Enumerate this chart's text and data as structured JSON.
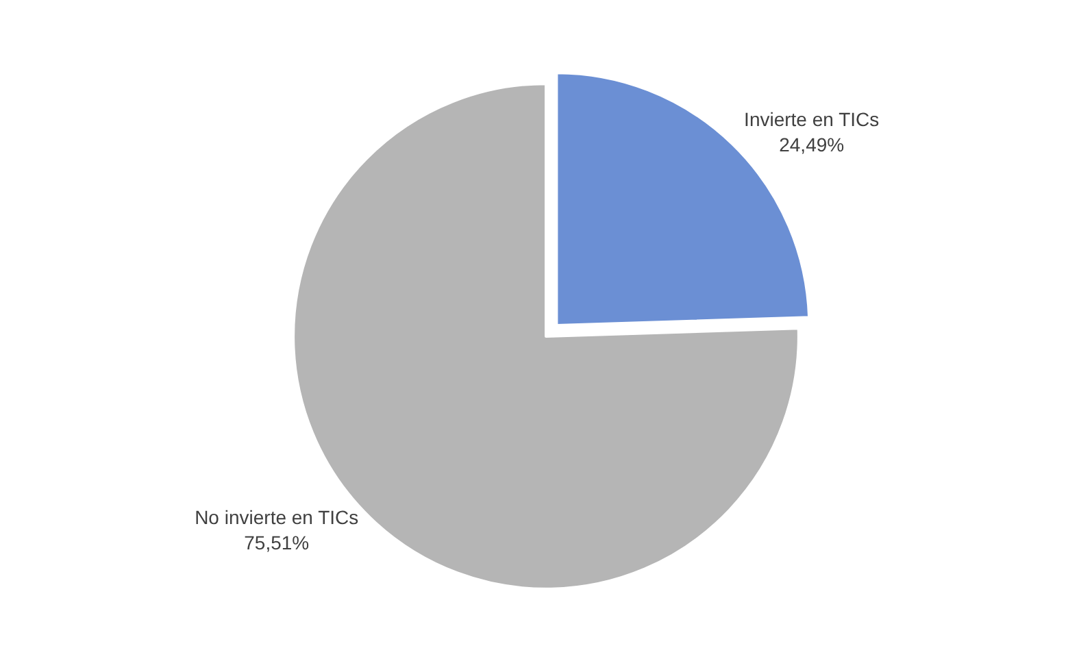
{
  "chart_data": {
    "type": "pie",
    "categories": [
      "Invierte en TICs",
      "No invierte en TICs"
    ],
    "values": [
      24.49,
      75.51
    ],
    "value_labels": [
      "24,49%",
      "75,51%"
    ],
    "colors": [
      "#6b8fd4",
      "#b5b5b5"
    ],
    "legend": false
  }
}
